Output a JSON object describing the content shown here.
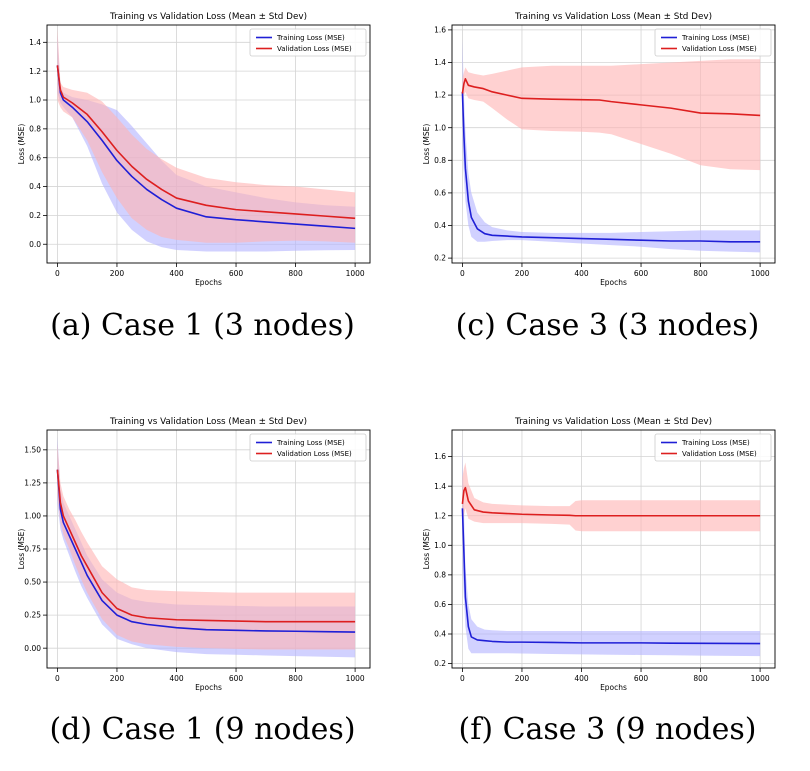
{
  "figure": {
    "captions": [
      "(a) Case 1 (3 nodes)",
      "(c) Case 3 (3 nodes)",
      "(d) Case 1 (9 nodes)",
      "(f) Case 3 (9 nodes)"
    ]
  },
  "colors": {
    "train_line": "#1f1fd6",
    "train_band": "#b3b3ff",
    "val_line": "#dd1f1f",
    "val_band": "#ffb3b3",
    "grid": "#d4d4d4",
    "axis": "#000000"
  },
  "chart_data": [
    {
      "type": "line",
      "title": "Training vs Validation Loss (Mean ± Std Dev)",
      "xlabel": "Epochs",
      "ylabel": "Loss (MSE)",
      "xlim": [
        -35,
        1050
      ],
      "ylim": [
        -0.13,
        1.52
      ],
      "xticks": [
        0,
        200,
        400,
        600,
        800,
        1000
      ],
      "xtick_labels": [
        "0",
        "200",
        "400",
        "600",
        "800",
        "1000"
      ],
      "yticks": [
        0.0,
        0.2,
        0.4,
        0.6,
        0.8,
        1.0,
        1.2,
        1.4
      ],
      "ytick_labels": [
        "0.0",
        "0.2",
        "0.4",
        "0.6",
        "0.8",
        "1.0",
        "1.2",
        "1.4"
      ],
      "grid": true,
      "legend_position": "top-right",
      "series": [
        {
          "name": "Training Loss (MSE)",
          "x": [
            0,
            10,
            20,
            50,
            100,
            150,
            200,
            250,
            300,
            350,
            400,
            500,
            600,
            700,
            800,
            900,
            1000
          ],
          "y": [
            1.24,
            1.05,
            1.0,
            0.95,
            0.85,
            0.72,
            0.58,
            0.47,
            0.38,
            0.31,
            0.25,
            0.19,
            0.17,
            0.155,
            0.14,
            0.125,
            0.11
          ],
          "lower": [
            1.05,
            0.98,
            0.95,
            0.88,
            0.68,
            0.42,
            0.22,
            0.1,
            0.02,
            -0.02,
            -0.04,
            -0.05,
            -0.05,
            -0.05,
            -0.045,
            -0.042,
            -0.04
          ],
          "upper": [
            1.45,
            1.1,
            1.05,
            1.02,
            1.0,
            0.97,
            0.93,
            0.82,
            0.7,
            0.58,
            0.48,
            0.4,
            0.36,
            0.32,
            0.29,
            0.27,
            0.26
          ]
        },
        {
          "name": "Validation Loss (MSE)",
          "x": [
            0,
            10,
            20,
            50,
            100,
            150,
            200,
            250,
            300,
            350,
            400,
            500,
            600,
            700,
            800,
            900,
            1000
          ],
          "y": [
            1.24,
            1.07,
            1.02,
            0.98,
            0.9,
            0.78,
            0.65,
            0.54,
            0.45,
            0.38,
            0.32,
            0.27,
            0.24,
            0.225,
            0.21,
            0.195,
            0.18
          ],
          "lower": [
            1.0,
            0.95,
            0.92,
            0.88,
            0.72,
            0.5,
            0.32,
            0.18,
            0.1,
            0.05,
            0.03,
            0.01,
            0.01,
            0.02,
            0.025,
            0.02,
            0.01
          ],
          "upper": [
            1.5,
            1.12,
            1.09,
            1.07,
            1.05,
            0.99,
            0.88,
            0.76,
            0.66,
            0.59,
            0.53,
            0.46,
            0.43,
            0.41,
            0.4,
            0.38,
            0.36
          ]
        }
      ]
    },
    {
      "type": "line",
      "title": "Training vs Validation Loss (Mean ± Std Dev)",
      "xlabel": "Epochs",
      "ylabel": "Loss (MSE)",
      "xlim": [
        -35,
        1050
      ],
      "ylim": [
        0.17,
        1.63
      ],
      "xticks": [
        0,
        200,
        400,
        600,
        800,
        1000
      ],
      "xtick_labels": [
        "0",
        "200",
        "400",
        "600",
        "800",
        "1000"
      ],
      "yticks": [
        0.2,
        0.4,
        0.6,
        0.8,
        1.0,
        1.2,
        1.4,
        1.6
      ],
      "ytick_labels": [
        "0.2",
        "0.4",
        "0.6",
        "0.8",
        "1.0",
        "1.2",
        "1.4",
        "1.6"
      ],
      "grid": true,
      "legend_position": "top-right",
      "series": [
        {
          "name": "Training Loss (MSE)",
          "x": [
            0,
            5,
            10,
            20,
            30,
            50,
            75,
            100,
            150,
            200,
            300,
            400,
            500,
            600,
            700,
            800,
            900,
            1000
          ],
          "y": [
            1.22,
            0.95,
            0.75,
            0.55,
            0.45,
            0.38,
            0.35,
            0.34,
            0.335,
            0.33,
            0.325,
            0.32,
            0.315,
            0.31,
            0.305,
            0.305,
            0.3,
            0.3
          ],
          "lower": [
            0.9,
            0.7,
            0.55,
            0.4,
            0.33,
            0.3,
            0.3,
            0.305,
            0.31,
            0.31,
            0.3,
            0.29,
            0.28,
            0.27,
            0.255,
            0.245,
            0.24,
            0.235
          ],
          "upper": [
            1.55,
            1.2,
            0.98,
            0.72,
            0.6,
            0.48,
            0.42,
            0.39,
            0.37,
            0.36,
            0.355,
            0.355,
            0.355,
            0.36,
            0.365,
            0.37,
            0.37,
            0.37
          ]
        },
        {
          "name": "Validation Loss (MSE)",
          "x": [
            0,
            5,
            10,
            20,
            40,
            70,
            100,
            150,
            200,
            300,
            400,
            460,
            500,
            600,
            700,
            800,
            900,
            1000
          ],
          "y": [
            1.21,
            1.27,
            1.3,
            1.26,
            1.25,
            1.24,
            1.22,
            1.2,
            1.18,
            1.175,
            1.172,
            1.17,
            1.16,
            1.14,
            1.12,
            1.09,
            1.085,
            1.075
          ],
          "lower": [
            1.1,
            1.2,
            1.22,
            1.18,
            1.17,
            1.16,
            1.12,
            1.05,
            0.99,
            0.98,
            0.975,
            0.97,
            0.96,
            0.9,
            0.84,
            0.77,
            0.745,
            0.74
          ],
          "upper": [
            1.3,
            1.34,
            1.37,
            1.34,
            1.33,
            1.32,
            1.33,
            1.35,
            1.37,
            1.38,
            1.38,
            1.38,
            1.38,
            1.39,
            1.4,
            1.41,
            1.42,
            1.42
          ]
        }
      ]
    },
    {
      "type": "line",
      "title": "Training vs Validation Loss (Mean ± Std Dev)",
      "xlabel": "Epochs",
      "ylabel": "Loss (MSE)",
      "xlim": [
        -35,
        1050
      ],
      "ylim": [
        -0.15,
        1.65
      ],
      "xticks": [
        0,
        200,
        400,
        600,
        800,
        1000
      ],
      "xtick_labels": [
        "0",
        "200",
        "400",
        "600",
        "800",
        "1000"
      ],
      "yticks": [
        0.0,
        0.25,
        0.5,
        0.75,
        1.0,
        1.25,
        1.5
      ],
      "ytick_labels": [
        "0.00",
        "0.25",
        "0.50",
        "0.75",
        "1.00",
        "1.25",
        "1.50"
      ],
      "grid": true,
      "legend_position": "top-right",
      "series": [
        {
          "name": "Training Loss (MSE)",
          "x": [
            0,
            10,
            20,
            40,
            60,
            80,
            100,
            150,
            200,
            250,
            300,
            400,
            500,
            600,
            700,
            800,
            900,
            1000
          ],
          "y": [
            1.35,
            1.05,
            0.95,
            0.85,
            0.75,
            0.65,
            0.55,
            0.36,
            0.25,
            0.2,
            0.18,
            0.155,
            0.14,
            0.135,
            0.13,
            0.128,
            0.125,
            0.122
          ],
          "lower": [
            1.1,
            0.9,
            0.82,
            0.7,
            0.58,
            0.47,
            0.38,
            0.18,
            0.07,
            0.03,
            0.0,
            -0.03,
            -0.045,
            -0.05,
            -0.055,
            -0.06,
            -0.065,
            -0.07
          ],
          "upper": [
            1.6,
            1.2,
            1.1,
            1.0,
            0.9,
            0.8,
            0.7,
            0.52,
            0.42,
            0.37,
            0.35,
            0.33,
            0.325,
            0.32,
            0.315,
            0.315,
            0.315,
            0.315
          ]
        },
        {
          "name": "Validation Loss (MSE)",
          "x": [
            0,
            10,
            20,
            40,
            60,
            80,
            100,
            150,
            200,
            250,
            300,
            400,
            500,
            600,
            700,
            800,
            900,
            1000
          ],
          "y": [
            1.35,
            1.1,
            1.0,
            0.9,
            0.8,
            0.7,
            0.62,
            0.42,
            0.3,
            0.25,
            0.23,
            0.215,
            0.21,
            0.205,
            0.2,
            0.2,
            0.2,
            0.2
          ],
          "lower": [
            1.15,
            0.95,
            0.86,
            0.75,
            0.63,
            0.52,
            0.42,
            0.22,
            0.1,
            0.05,
            0.03,
            0.01,
            0.0,
            -0.005,
            -0.01,
            -0.01,
            -0.01,
            -0.01
          ],
          "upper": [
            1.55,
            1.25,
            1.15,
            1.05,
            0.97,
            0.88,
            0.8,
            0.62,
            0.52,
            0.46,
            0.44,
            0.43,
            0.425,
            0.42,
            0.42,
            0.42,
            0.42,
            0.42
          ]
        }
      ]
    },
    {
      "type": "line",
      "title": "Training vs Validation Loss (Mean ± Std Dev)",
      "xlabel": "Epochs",
      "ylabel": "Loss (MSE)",
      "xlim": [
        -35,
        1050
      ],
      "ylim": [
        0.17,
        1.78
      ],
      "xticks": [
        0,
        200,
        400,
        600,
        800,
        1000
      ],
      "xtick_labels": [
        "0",
        "200",
        "400",
        "600",
        "800",
        "1000"
      ],
      "yticks": [
        0.2,
        0.4,
        0.6,
        0.8,
        1.0,
        1.2,
        1.4,
        1.6
      ],
      "ytick_labels": [
        "0.2",
        "0.4",
        "0.6",
        "0.8",
        "1.0",
        "1.2",
        "1.4",
        "1.6"
      ],
      "grid": true,
      "legend_position": "top-right",
      "series": [
        {
          "name": "Training Loss (MSE)",
          "x": [
            0,
            5,
            10,
            20,
            30,
            50,
            75,
            100,
            150,
            200,
            300,
            400,
            500,
            600,
            700,
            800,
            900,
            1000
          ],
          "y": [
            1.25,
            0.95,
            0.65,
            0.45,
            0.38,
            0.36,
            0.355,
            0.35,
            0.345,
            0.345,
            0.343,
            0.34,
            0.34,
            0.34,
            0.338,
            0.337,
            0.336,
            0.335
          ],
          "lower": [
            0.85,
            0.65,
            0.45,
            0.3,
            0.27,
            0.27,
            0.27,
            0.27,
            0.27,
            0.268,
            0.265,
            0.262,
            0.26,
            0.258,
            0.256,
            0.254,
            0.252,
            0.25
          ],
          "upper": [
            1.65,
            1.25,
            0.85,
            0.6,
            0.5,
            0.45,
            0.43,
            0.425,
            0.42,
            0.42,
            0.42,
            0.42,
            0.42,
            0.42,
            0.42,
            0.42,
            0.42,
            0.42
          ]
        },
        {
          "name": "Validation Loss (MSE)",
          "x": [
            0,
            5,
            10,
            20,
            40,
            70,
            100,
            150,
            200,
            300,
            360,
            380,
            400,
            500,
            600,
            700,
            800,
            900,
            1000
          ],
          "y": [
            1.28,
            1.37,
            1.39,
            1.3,
            1.24,
            1.225,
            1.22,
            1.215,
            1.21,
            1.205,
            1.203,
            1.2,
            1.2,
            1.2,
            1.2,
            1.2,
            1.2,
            1.2,
            1.2
          ],
          "lower": [
            1.1,
            1.2,
            1.25,
            1.18,
            1.16,
            1.15,
            1.15,
            1.15,
            1.15,
            1.145,
            1.14,
            1.1,
            1.095,
            1.095,
            1.095,
            1.095,
            1.095,
            1.095,
            1.095
          ],
          "upper": [
            1.46,
            1.52,
            1.56,
            1.42,
            1.32,
            1.29,
            1.28,
            1.275,
            1.27,
            1.265,
            1.265,
            1.3,
            1.305,
            1.305,
            1.305,
            1.305,
            1.305,
            1.305,
            1.305
          ]
        }
      ]
    }
  ]
}
